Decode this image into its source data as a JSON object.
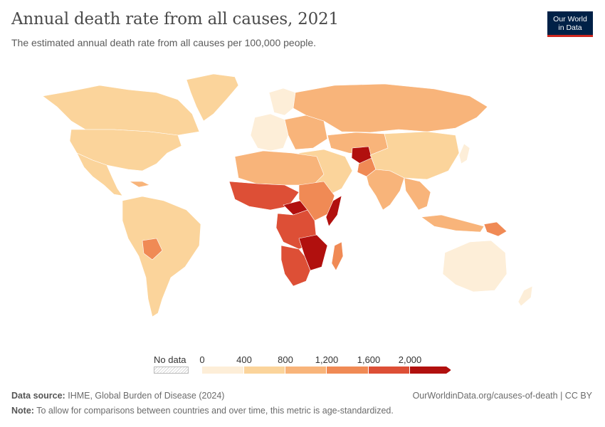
{
  "header": {
    "title": "Annual death rate from all causes, 2021",
    "subtitle": "The estimated annual death rate from all causes per 100,000 people.",
    "logo_line1": "Our World",
    "logo_line2": "in Data"
  },
  "legend": {
    "no_data_label": "No data",
    "ticks": [
      "0",
      "400",
      "800",
      "1,200",
      "1,600",
      "2,000"
    ],
    "colors": [
      "#fdeed8",
      "#fbd49b",
      "#f8b47a",
      "#f08a55",
      "#dd4f36",
      "#b1100e"
    ]
  },
  "footer": {
    "source_label": "Data source:",
    "source_text": "IHME, Global Burden of Disease (2024)",
    "url": "OurWorldinData.org/causes-of-death | CC BY",
    "note_label": "Note:",
    "note_text": "To allow for comparisons between countries and over time, this metric is age-standardized."
  },
  "chart_data": {
    "type": "choropleth",
    "metric": "Annual death rate from all causes per 100,000 people",
    "year": 2021,
    "bins": [
      0,
      400,
      800,
      1200,
      1600,
      2000
    ],
    "regions": [
      {
        "name": "North America",
        "bin": "400-800"
      },
      {
        "name": "Greenland",
        "bin": "400-800"
      },
      {
        "name": "Central America",
        "bin": "400-800"
      },
      {
        "name": "South America",
        "bin": "400-800"
      },
      {
        "name": "Bolivia",
        "bin": "1,200-1,600"
      },
      {
        "name": "Western Europe",
        "bin": "0-400"
      },
      {
        "name": "Eastern Europe",
        "bin": "800-1,200"
      },
      {
        "name": "Russia",
        "bin": "800-1,200"
      },
      {
        "name": "Middle East",
        "bin": "400-800"
      },
      {
        "name": "Central Asia",
        "bin": "800-1,200"
      },
      {
        "name": "Afghanistan",
        "bin": "2,000+"
      },
      {
        "name": "Pakistan",
        "bin": "1,200-1,600"
      },
      {
        "name": "India",
        "bin": "800-1,200"
      },
      {
        "name": "China",
        "bin": "400-800"
      },
      {
        "name": "Japan",
        "bin": "0-400"
      },
      {
        "name": "Southeast Asia",
        "bin": "800-1,200"
      },
      {
        "name": "North Africa",
        "bin": "800-1,200"
      },
      {
        "name": "Sahel / West Africa",
        "bin": "1,600-2,000"
      },
      {
        "name": "Central African Republic",
        "bin": "2,000+"
      },
      {
        "name": "Central Africa",
        "bin": "1,600-2,000"
      },
      {
        "name": "Somalia",
        "bin": "2,000+"
      },
      {
        "name": "East Africa",
        "bin": "1,200-1,600"
      },
      {
        "name": "Southern Africa",
        "bin": "1,600-2,000"
      },
      {
        "name": "Mozambique / Zimbabwe",
        "bin": "2,000+"
      },
      {
        "name": "Madagascar",
        "bin": "1,200-1,600"
      },
      {
        "name": "Papua New Guinea",
        "bin": "1,200-1,600"
      },
      {
        "name": "Australia",
        "bin": "0-400"
      },
      {
        "name": "New Zealand",
        "bin": "0-400"
      }
    ]
  }
}
